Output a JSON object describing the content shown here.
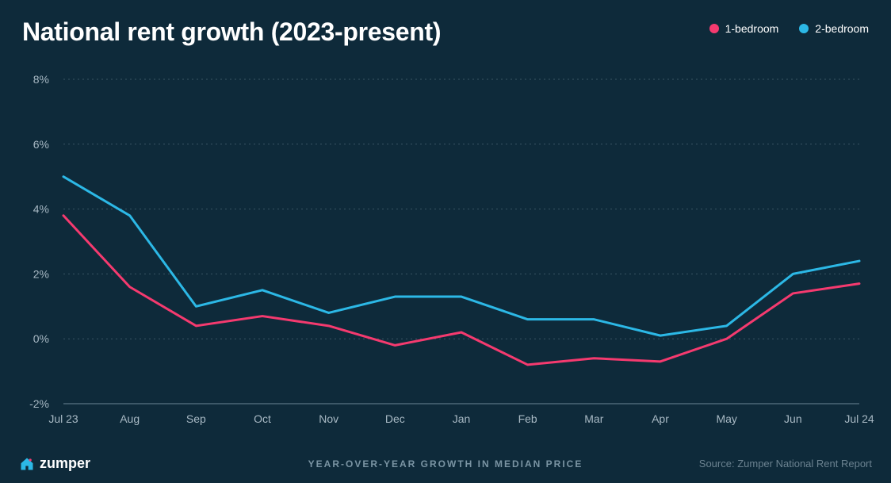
{
  "title": "National rent growth (2023-present)",
  "subtitle": "YEAR-OVER-YEAR GROWTH IN MEDIAN PRICE",
  "source": "Source: Zumper National Rent Report",
  "brand": "zumper",
  "background_color": "#0e2a3a",
  "text_color": "#ffffff",
  "axis_label_color": "#a8b9c4",
  "grid_color": "#3a5564",
  "axis_line_color": "#5a7584",
  "legend": [
    {
      "label": "1-bedroom",
      "color": "#f53a6f"
    },
    {
      "label": "2-bedroom",
      "color": "#2cb8e6"
    }
  ],
  "chart": {
    "type": "line",
    "ylim": [
      -2,
      8
    ],
    "ytick_step": 2,
    "y_suffix": "%",
    "yticks": [
      -2,
      0,
      2,
      4,
      6,
      8
    ],
    "categories": [
      "Jul 23",
      "Aug",
      "Sep",
      "Oct",
      "Nov",
      "Dec",
      "Jan",
      "Feb",
      "Mar",
      "Apr",
      "May",
      "Jun",
      "Jul 24"
    ],
    "line_width": 3,
    "grid_dasharray": "2 4",
    "series": [
      {
        "name": "1-bedroom",
        "color": "#f53a6f",
        "values": [
          3.8,
          1.6,
          0.4,
          0.7,
          0.4,
          -0.2,
          0.2,
          -0.8,
          -0.6,
          -0.7,
          0.0,
          1.4,
          1.7
        ]
      },
      {
        "name": "2-bedroom",
        "color": "#2cb8e6",
        "values": [
          5.0,
          3.8,
          1.0,
          1.5,
          0.8,
          1.3,
          1.3,
          0.6,
          0.6,
          0.1,
          0.4,
          2.0,
          2.4
        ]
      }
    ]
  }
}
